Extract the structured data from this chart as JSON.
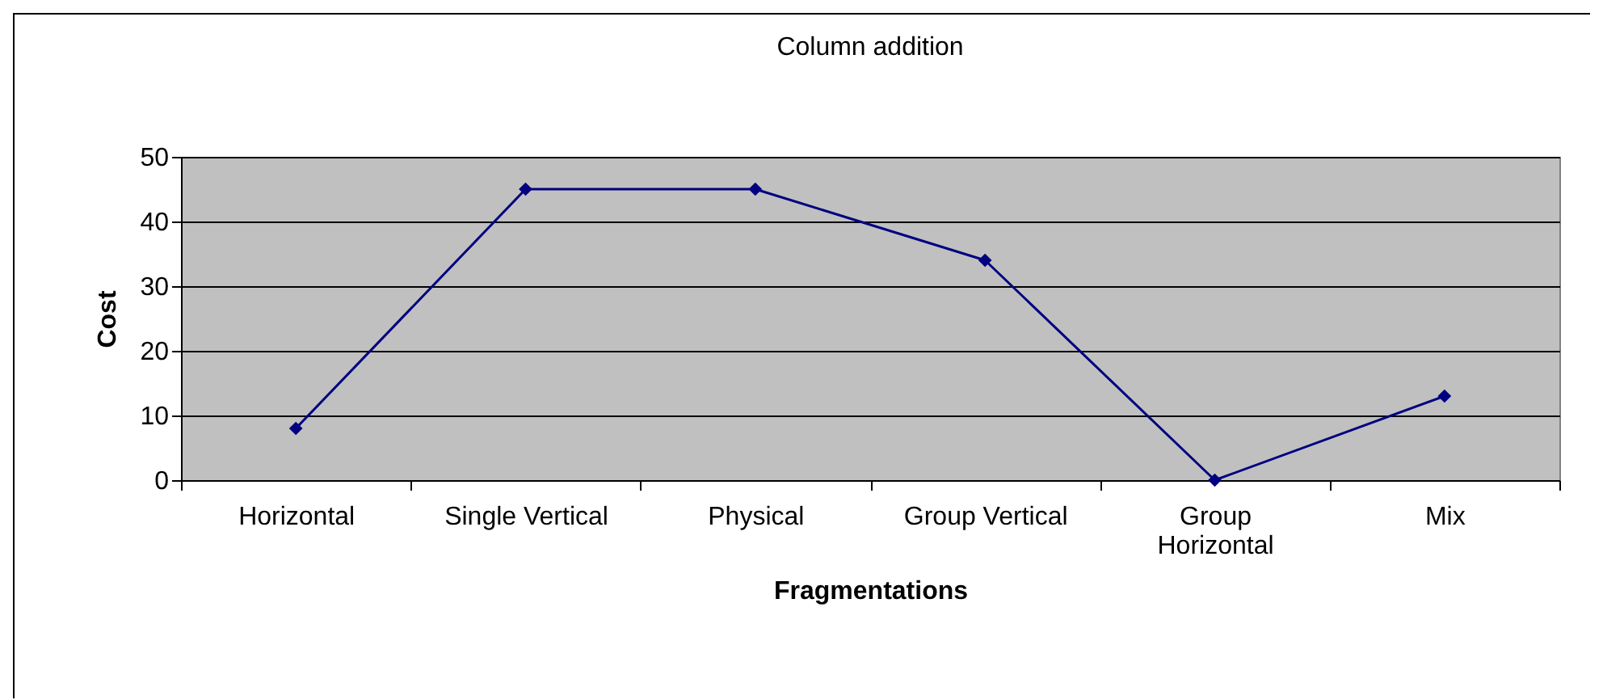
{
  "chart_data": {
    "type": "line",
    "title": "Column addition",
    "xlabel": "Fragmentations",
    "ylabel": "Cost",
    "categories": [
      "Horizontal",
      "Single Vertical",
      "Physical",
      "Group Vertical",
      "Group Horizontal",
      "Mix"
    ],
    "series": [
      {
        "color": "#000080",
        "values": [
          8,
          45,
          45,
          34,
          0,
          13
        ]
      }
    ],
    "ylim": [
      0,
      50
    ],
    "yticks": [
      0,
      10,
      20,
      30,
      40,
      50
    ],
    "grid": "y",
    "marker": "diamond",
    "line_style": "solid"
  }
}
